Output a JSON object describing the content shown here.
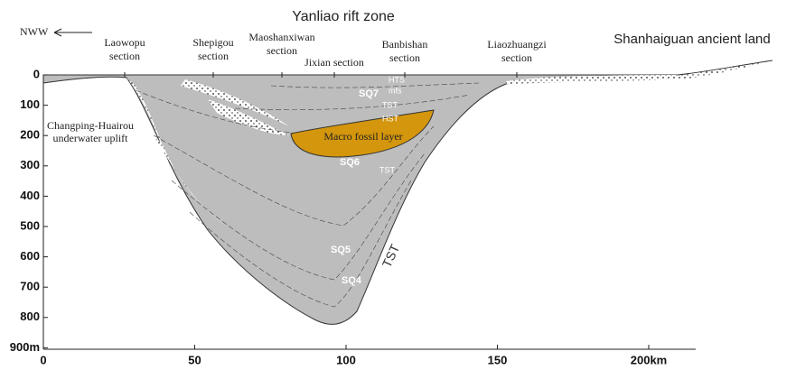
{
  "header": {
    "title": "Yanliao rift zone",
    "direction": "NWW",
    "right_label": "Shanhaiguan ancient land"
  },
  "sections": [
    {
      "lines": [
        "Laowopu",
        "section"
      ]
    },
    {
      "lines": [
        "Shepigou",
        "section"
      ]
    },
    {
      "lines": [
        "Maoshanxiwan",
        "section"
      ]
    },
    {
      "lines": [
        "Jixian  section"
      ]
    },
    {
      "lines": [
        "Banbishan",
        "section"
      ]
    },
    {
      "lines": [
        "Liaozhuangzi",
        "section"
      ]
    }
  ],
  "uplift": {
    "lines": [
      "Changping-Huairou",
      "underwater uplift"
    ]
  },
  "labels": {
    "hts": "HTS",
    "sq7": "SQ7",
    "mfs": "mfs",
    "tst_upper": "TST",
    "hst": "HST",
    "fossil_layer": "Macro fossil layer",
    "sq6": "SQ6",
    "tst_middle": "TST",
    "sq5": "SQ5",
    "sq4": "SQ4",
    "tst_lower": "TST"
  },
  "y_axis": {
    "ticks": [
      "0",
      "100",
      "200",
      "300",
      "400",
      "500",
      "600",
      "700",
      "800",
      "900m"
    ]
  },
  "x_axis": {
    "ticks": [
      "0",
      "50",
      "100",
      "150",
      "200km"
    ]
  }
}
